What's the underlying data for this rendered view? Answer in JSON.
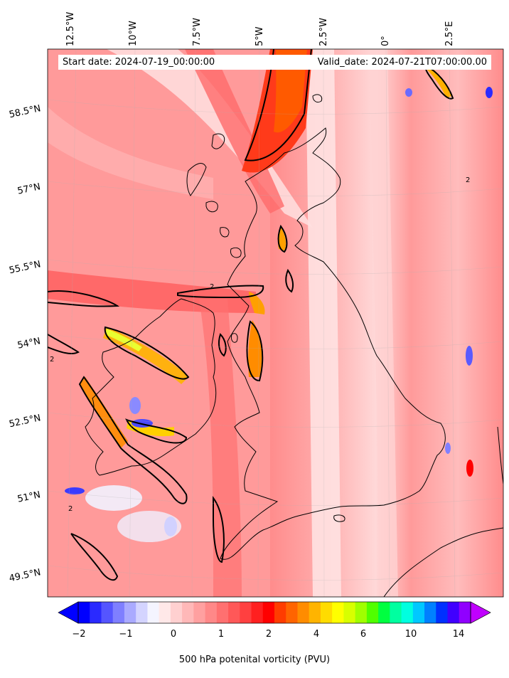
{
  "map": {
    "start_date": "Start date: 2024-07-19_00:00:00",
    "valid_date": "Valid_date: 2024-07-21T07:00:00.00",
    "field": "500 hPa potential vorticity",
    "contour_level": "2",
    "longitude_labels": [
      "12.5°W",
      "10°W",
      "7.5°W",
      "5°W",
      "2.5°W",
      "0°",
      "2.5°E"
    ],
    "latitude_labels": [
      "58.5°N",
      "57°N",
      "55.5°N",
      "54°N",
      "52.5°N",
      "51°N",
      "49.5°N"
    ]
  },
  "colorbar": {
    "label": "500 hPa potenital vorticity (PVU)",
    "tick_labels": [
      "−2",
      "−1",
      "0",
      "1",
      "2",
      "4",
      "6",
      "10",
      "14"
    ],
    "colors": [
      "#0000ff",
      "#2a2aff",
      "#5555ff",
      "#7f7fff",
      "#aaaaff",
      "#d4d4ff",
      "#f4f4ff",
      "#ffe8e8",
      "#ffd0d0",
      "#ffb8b8",
      "#ffa0a0",
      "#ff8888",
      "#ff7070",
      "#ff5858",
      "#ff4040",
      "#ff2020",
      "#ff0000",
      "#ff3c00",
      "#ff6400",
      "#ff8c00",
      "#ffb400",
      "#ffdc00",
      "#ffff00",
      "#d8ff00",
      "#a0ff00",
      "#50ff00",
      "#00ff40",
      "#00ffa0",
      "#00ffe0",
      "#00c8ff",
      "#0080ff",
      "#0030ff",
      "#4000ff",
      "#9000ff"
    ],
    "extend_low_color": "#0000ff",
    "extend_high_color": "#c000ff"
  },
  "colors": {
    "background_pv": "#ff9a9a",
    "high_pv": "#ff2a00",
    "coastline": "#000000"
  }
}
